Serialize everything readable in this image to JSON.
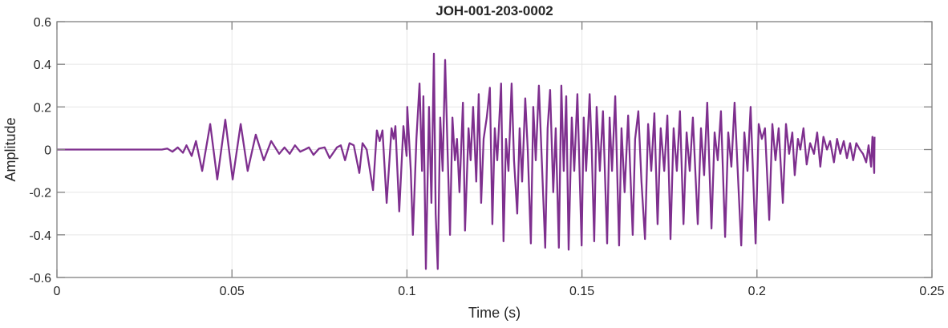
{
  "chart_data": {
    "type": "line",
    "title": "JOH-001-203-0002",
    "xlabel": "Time (s)",
    "ylabel": "Amplitude",
    "xlim": [
      0,
      0.25
    ],
    "ylim": [
      -0.6,
      0.6
    ],
    "xticks": [
      0,
      0.05,
      0.1,
      0.15,
      0.2,
      0.25
    ],
    "xtick_labels": [
      "0",
      "0.05",
      "0.1",
      "0.15",
      "0.2",
      "0.25"
    ],
    "yticks": [
      -0.6,
      -0.4,
      -0.2,
      0,
      0.2,
      0.4,
      0.6
    ],
    "ytick_labels": [
      "-0.6",
      "-0.4",
      "-0.2",
      "0",
      "0.2",
      "0.4",
      "0.6"
    ],
    "grid": true,
    "series": [
      {
        "name": "JOH-001-203-0002",
        "color": "#7E2F8E",
        "points": [
          [
            0,
            0
          ],
          [
            0.03,
            0
          ],
          [
            0.0315,
            0.005
          ],
          [
            0.033,
            -0.01
          ],
          [
            0.0345,
            0.01
          ],
          [
            0.036,
            -0.015
          ],
          [
            0.037,
            0.02
          ],
          [
            0.0385,
            -0.03
          ],
          [
            0.0397,
            0.04
          ],
          [
            0.0415,
            -0.1
          ],
          [
            0.0438,
            0.12
          ],
          [
            0.0458,
            -0.14
          ],
          [
            0.0481,
            0.14
          ],
          [
            0.0502,
            -0.14
          ],
          [
            0.0525,
            0.12
          ],
          [
            0.0545,
            -0.1
          ],
          [
            0.0568,
            0.07
          ],
          [
            0.0591,
            -0.05
          ],
          [
            0.0612,
            0.04
          ],
          [
            0.0635,
            -0.02
          ],
          [
            0.065,
            0.01
          ],
          [
            0.0665,
            -0.02
          ],
          [
            0.068,
            0.02
          ],
          [
            0.0695,
            -0.01
          ],
          [
            0.0708,
            0.0
          ],
          [
            0.072,
            0.01
          ],
          [
            0.0733,
            -0.025
          ],
          [
            0.0749,
            0.005
          ],
          [
            0.0765,
            0.01
          ],
          [
            0.0779,
            -0.04
          ],
          [
            0.08,
            0.01
          ],
          [
            0.0811,
            0.02
          ],
          [
            0.0823,
            -0.05
          ],
          [
            0.0836,
            0.03
          ],
          [
            0.0848,
            0.02
          ],
          [
            0.0864,
            -0.11
          ],
          [
            0.0873,
            0.03
          ],
          [
            0.0885,
            0.0
          ],
          [
            0.0903,
            -0.19
          ],
          [
            0.0914,
            0.09
          ],
          [
            0.0922,
            0.04
          ],
          [
            0.093,
            0.09
          ],
          [
            0.0942,
            -0.25
          ],
          [
            0.0956,
            0.1
          ],
          [
            0.0962,
            0.05
          ],
          [
            0.0967,
            0.11
          ],
          [
            0.0978,
            -0.29
          ],
          [
            0.099,
            0.11
          ],
          [
            0.0999,
            -0.03
          ],
          [
            0.1001,
            0.2
          ],
          [
            0.1011,
            -0.1
          ],
          [
            0.1017,
            -0.4
          ],
          [
            0.1027,
            0.05
          ],
          [
            0.1036,
            0.31
          ],
          [
            0.1043,
            -0.1
          ],
          [
            0.1047,
            0.25
          ],
          [
            0.1054,
            -0.56
          ],
          [
            0.1063,
            0.2
          ],
          [
            0.107,
            -0.25
          ],
          [
            0.1077,
            0.45
          ],
          [
            0.1082,
            -0.3
          ],
          [
            0.1088,
            -0.56
          ],
          [
            0.1095,
            0.15
          ],
          [
            0.1102,
            -0.1
          ],
          [
            0.1109,
            0.42
          ],
          [
            0.1116,
            0.0
          ],
          [
            0.1123,
            -0.4
          ],
          [
            0.113,
            0.15
          ],
          [
            0.1137,
            -0.05
          ],
          [
            0.1143,
            0.05
          ],
          [
            0.115,
            -0.2
          ],
          [
            0.116,
            0.22
          ],
          [
            0.1166,
            -0.38
          ],
          [
            0.1176,
            0.1
          ],
          [
            0.1182,
            -0.05
          ],
          [
            0.1189,
            0.2
          ],
          [
            0.1198,
            -0.15
          ],
          [
            0.1205,
            0.26
          ],
          [
            0.1212,
            -0.25
          ],
          [
            0.1219,
            0.05
          ],
          [
            0.1228,
            0.15
          ],
          [
            0.1237,
            0.29
          ],
          [
            0.1244,
            -0.35
          ],
          [
            0.1251,
            0.1
          ],
          [
            0.1258,
            -0.05
          ],
          [
            0.1269,
            0.31
          ],
          [
            0.1276,
            -0.43
          ],
          [
            0.1283,
            0.05
          ],
          [
            0.129,
            -0.1
          ],
          [
            0.1299,
            0.31
          ],
          [
            0.1306,
            -0.05
          ],
          [
            0.1315,
            -0.3
          ],
          [
            0.1322,
            0.1
          ],
          [
            0.1329,
            -0.15
          ],
          [
            0.1338,
            0.24
          ],
          [
            0.1345,
            0.0
          ],
          [
            0.1354,
            -0.44
          ],
          [
            0.1361,
            0.2
          ],
          [
            0.1368,
            -0.05
          ],
          [
            0.1377,
            0.3
          ],
          [
            0.1384,
            0.0
          ],
          [
            0.1395,
            -0.46
          ],
          [
            0.1402,
            0.1
          ],
          [
            0.1409,
            0.28
          ],
          [
            0.1418,
            -0.2
          ],
          [
            0.1425,
            0.1
          ],
          [
            0.1434,
            -0.46
          ],
          [
            0.1441,
            0.3
          ],
          [
            0.1448,
            -0.1
          ],
          [
            0.1455,
            0.25
          ],
          [
            0.1462,
            -0.47
          ],
          [
            0.1471,
            0.15
          ],
          [
            0.1478,
            -0.1
          ],
          [
            0.1487,
            0.26
          ],
          [
            0.1499,
            -0.45
          ],
          [
            0.1505,
            0.15
          ],
          [
            0.1512,
            -0.1
          ],
          [
            0.1522,
            0.26
          ],
          [
            0.1528,
            0.0
          ],
          [
            0.1535,
            -0.43
          ],
          [
            0.1542,
            0.2
          ],
          [
            0.1551,
            -0.1
          ],
          [
            0.156,
            0.18
          ],
          [
            0.1572,
            -0.44
          ],
          [
            0.1579,
            0.15
          ],
          [
            0.1586,
            -0.1
          ],
          [
            0.1595,
            0.25
          ],
          [
            0.1606,
            -0.45
          ],
          [
            0.1613,
            0.1
          ],
          [
            0.1622,
            -0.2
          ],
          [
            0.1632,
            0.16
          ],
          [
            0.1645,
            -0.4
          ],
          [
            0.1652,
            0.05
          ],
          [
            0.1661,
            0.18
          ],
          [
            0.167,
            -0.15
          ],
          [
            0.168,
            -0.42
          ],
          [
            0.1689,
            0.12
          ],
          [
            0.1698,
            -0.1
          ],
          [
            0.1707,
            0.17
          ],
          [
            0.1716,
            -0.35
          ],
          [
            0.1725,
            0.1
          ],
          [
            0.1735,
            -0.1
          ],
          [
            0.1744,
            0.16
          ],
          [
            0.1753,
            -0.42
          ],
          [
            0.1762,
            0.1
          ],
          [
            0.1771,
            -0.1
          ],
          [
            0.178,
            0.18
          ],
          [
            0.179,
            -0.35
          ],
          [
            0.1799,
            0.08
          ],
          [
            0.1808,
            -0.1
          ],
          [
            0.1817,
            0.15
          ],
          [
            0.1831,
            -0.35
          ],
          [
            0.184,
            0.1
          ],
          [
            0.1849,
            -0.12
          ],
          [
            0.1858,
            0.22
          ],
          [
            0.187,
            -0.37
          ],
          [
            0.1879,
            0.08
          ],
          [
            0.1888,
            -0.05
          ],
          [
            0.1897,
            0.18
          ],
          [
            0.1909,
            -0.41
          ],
          [
            0.1918,
            0.08
          ],
          [
            0.1927,
            -0.08
          ],
          [
            0.1936,
            0.22
          ],
          [
            0.1945,
            -0.1
          ],
          [
            0.1955,
            -0.45
          ],
          [
            0.1964,
            0.08
          ],
          [
            0.1973,
            -0.1
          ],
          [
            0.1982,
            0.2
          ],
          [
            0.1996,
            -0.44
          ],
          [
            0.2005,
            0.12
          ],
          [
            0.2014,
            0.05
          ],
          [
            0.2023,
            0.1
          ],
          [
            0.2035,
            -0.33
          ],
          [
            0.2044,
            0.12
          ],
          [
            0.2053,
            -0.05
          ],
          [
            0.2062,
            0.1
          ],
          [
            0.2074,
            -0.25
          ],
          [
            0.2083,
            0.12
          ],
          [
            0.2092,
            -0.02
          ],
          [
            0.2101,
            0.08
          ],
          [
            0.2108,
            -0.12
          ],
          [
            0.2117,
            0.05
          ],
          [
            0.2124,
            0.0
          ],
          [
            0.2133,
            0.1
          ],
          [
            0.2142,
            -0.07
          ],
          [
            0.2152,
            0.03
          ],
          [
            0.2163,
            -0.02
          ],
          [
            0.2172,
            0.08
          ],
          [
            0.2181,
            -0.08
          ],
          [
            0.219,
            0.06
          ],
          [
            0.22,
            0.0
          ],
          [
            0.2209,
            0.04
          ],
          [
            0.222,
            -0.06
          ],
          [
            0.2229,
            0.05
          ],
          [
            0.2238,
            -0.02
          ],
          [
            0.2248,
            0.04
          ],
          [
            0.2257,
            -0.04
          ],
          [
            0.2266,
            0.03
          ],
          [
            0.2275,
            -0.05
          ],
          [
            0.2284,
            0.03
          ],
          [
            0.2294,
            0.0
          ],
          [
            0.2303,
            -0.02
          ],
          [
            0.2312,
            -0.06
          ],
          [
            0.2319,
            0.02
          ],
          [
            0.2326,
            -0.08
          ],
          [
            0.233,
            0.06
          ],
          [
            0.2335,
            -0.11
          ],
          [
            0.2336,
            0.06
          ]
        ]
      }
    ]
  }
}
